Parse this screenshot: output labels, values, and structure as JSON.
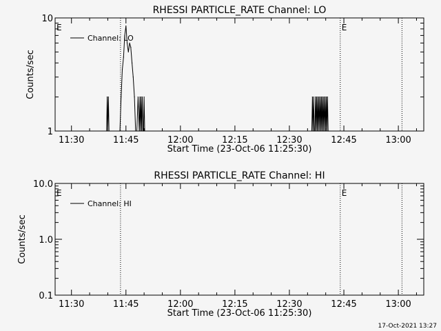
{
  "footer": {
    "timestamp": "17-Oct-2021 13:27"
  },
  "chart_data": [
    {
      "type": "line",
      "title": "RHESSI PARTICLE_RATE Channel: LO",
      "xlabel": "Start Time (23-Oct-06 11:25:30)",
      "ylabel": "Counts/sec",
      "yscale": "log",
      "xlim": [
        "11:25:30",
        "13:07:00"
      ],
      "ylim": [
        1,
        10
      ],
      "x_ticks": [
        "11:30",
        "11:45",
        "12:00",
        "12:15",
        "12:30",
        "12:45",
        "13:00"
      ],
      "y_ticks": [
        "1",
        "10"
      ],
      "legend": {
        "label": "Channel: LO",
        "placement": "top-left"
      },
      "vlines": [
        "11:43:30",
        "12:44:00",
        "13:01:00"
      ],
      "event_markers": [
        {
          "label": "E",
          "x": "11:25:30"
        },
        {
          "label": "E",
          "x": "12:44:00"
        }
      ],
      "series": [
        {
          "x": [
            "11:39:40",
            "11:39:50",
            "11:40:00",
            "11:40:10",
            "11:40:20",
            "11:43:20",
            "11:43:40",
            "11:44:00",
            "11:44:20",
            "11:44:40",
            "11:45:00",
            "11:45:20",
            "11:45:40",
            "11:46:00",
            "11:46:20",
            "11:46:40",
            "11:47:00",
            "11:47:20",
            "11:47:40",
            "11:48:00",
            "11:48:20",
            "11:48:40",
            "11:48:50",
            "11:49:00",
            "11:49:10",
            "11:49:20",
            "11:49:30",
            "11:49:40",
            "11:49:50",
            "11:50:00",
            "11:50:10",
            "12:36:10",
            "12:36:20",
            "12:36:30",
            "12:36:40",
            "12:36:50",
            "12:37:00",
            "12:37:10",
            "12:37:20",
            "12:37:30",
            "12:37:40",
            "12:37:50",
            "12:38:00",
            "12:38:10",
            "12:38:20",
            "12:38:30",
            "12:38:40",
            "12:38:50",
            "12:39:00",
            "12:39:10",
            "12:39:20",
            "12:39:30",
            "12:39:40",
            "12:39:50",
            "12:40:00",
            "12:40:10",
            "12:40:20",
            "12:40:30",
            "12:40:40",
            "12:40:50"
          ],
          "y": [
            1,
            2,
            1,
            2,
            1,
            1,
            2,
            3.5,
            4.5,
            7,
            8.5,
            6,
            5,
            6,
            5.5,
            4,
            3,
            2,
            1,
            1,
            2,
            1,
            2,
            1,
            2,
            1,
            2,
            1,
            1,
            2,
            1,
            1,
            2,
            1,
            2,
            1,
            1,
            2,
            1,
            2,
            1,
            2,
            1,
            2,
            1,
            2,
            1,
            2,
            1,
            2,
            1,
            2,
            1,
            2,
            1,
            2,
            1,
            2,
            1,
            1
          ]
        }
      ]
    },
    {
      "type": "line",
      "title": "RHESSI PARTICLE_RATE Channel: HI",
      "xlabel": "Start Time (23-Oct-06 11:25:30)",
      "ylabel": "Counts/sec",
      "yscale": "log",
      "xlim": [
        "11:25:30",
        "13:07:00"
      ],
      "ylim": [
        0.1,
        10
      ],
      "x_ticks": [
        "11:30",
        "11:45",
        "12:00",
        "12:15",
        "12:30",
        "12:45",
        "13:00"
      ],
      "y_ticks": [
        "0.1",
        "1.0",
        "10.0"
      ],
      "legend": {
        "label": "Channel: HI",
        "placement": "top-left"
      },
      "vlines": [
        "11:43:30",
        "12:44:00",
        "13:01:00"
      ],
      "event_markers": [
        {
          "label": "E",
          "x": "11:25:30"
        },
        {
          "label": "E",
          "x": "12:44:00"
        }
      ],
      "series": [
        {
          "x": [],
          "y": []
        }
      ]
    }
  ]
}
